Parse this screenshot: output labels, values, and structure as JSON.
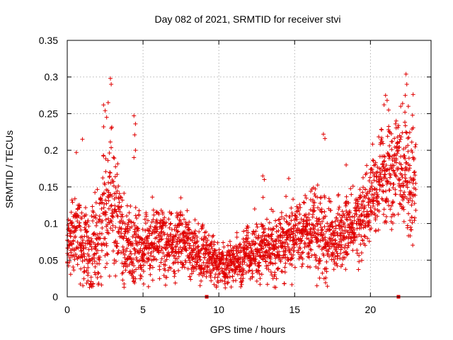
{
  "chart_data": {
    "type": "scatter",
    "title": "Day 082 of 2021, SRMTID for receiver stvi",
    "xlabel": "GPS time / hours",
    "ylabel": "SRMTID / TECUs",
    "xlim": [
      0,
      24
    ],
    "ylim": [
      0,
      0.35
    ],
    "x_ticks": [
      0,
      5,
      10,
      15,
      20
    ],
    "x_tick_labels": [
      "0",
      "5",
      "10",
      "15",
      "20"
    ],
    "y_ticks": [
      0,
      0.05,
      0.1,
      0.15,
      0.2,
      0.25,
      0.3,
      0.35
    ],
    "y_tick_labels": [
      "0",
      "0.05",
      "0.1",
      "0.15",
      "0.2",
      "0.25",
      "0.3",
      "0.35"
    ],
    "grid": true,
    "marker": "plus",
    "color": "#e00000",
    "trend": {
      "x": [
        0,
        0.5,
        1,
        1.5,
        2,
        2.5,
        3,
        3.5,
        4,
        4.5,
        5,
        5.5,
        6,
        6.5,
        7,
        7.5,
        8,
        8.5,
        9,
        9.5,
        10,
        10.5,
        11,
        11.5,
        12,
        12.5,
        13,
        13.5,
        14,
        14.5,
        15,
        15.5,
        16,
        16.5,
        17,
        17.5,
        18,
        18.5,
        19,
        19.5,
        20,
        20.5,
        21,
        21.5,
        22,
        22.5,
        23
      ],
      "y": [
        0.06,
        0.09,
        0.07,
        0.06,
        0.08,
        0.11,
        0.12,
        0.09,
        0.06,
        0.07,
        0.06,
        0.07,
        0.08,
        0.07,
        0.07,
        0.08,
        0.07,
        0.06,
        0.06,
        0.055,
        0.045,
        0.045,
        0.05,
        0.05,
        0.055,
        0.06,
        0.065,
        0.07,
        0.075,
        0.08,
        0.085,
        0.085,
        0.09,
        0.085,
        0.08,
        0.08,
        0.085,
        0.09,
        0.1,
        0.11,
        0.13,
        0.15,
        0.17,
        0.17,
        0.18,
        0.16,
        0.14
      ],
      "spread": [
        0.02,
        0.03,
        0.03,
        0.03,
        0.04,
        0.05,
        0.05,
        0.04,
        0.03,
        0.03,
        0.025,
        0.025,
        0.025,
        0.025,
        0.025,
        0.025,
        0.02,
        0.02,
        0.02,
        0.02,
        0.015,
        0.015,
        0.015,
        0.02,
        0.02,
        0.02,
        0.025,
        0.025,
        0.025,
        0.025,
        0.025,
        0.025,
        0.03,
        0.03,
        0.03,
        0.025,
        0.025,
        0.025,
        0.025,
        0.03,
        0.03,
        0.035,
        0.04,
        0.04,
        0.045,
        0.04,
        0.035
      ]
    },
    "outliers": [
      {
        "x": 2.85,
        "y": 0.298
      },
      {
        "x": 2.9,
        "y": 0.29
      },
      {
        "x": 2.7,
        "y": 0.265
      },
      {
        "x": 2.5,
        "y": 0.254
      },
      {
        "x": 2.6,
        "y": 0.245
      },
      {
        "x": 2.4,
        "y": 0.232
      },
      {
        "x": 4.4,
        "y": 0.247
      },
      {
        "x": 4.5,
        "y": 0.236
      },
      {
        "x": 4.45,
        "y": 0.221
      },
      {
        "x": 4.4,
        "y": 0.19
      },
      {
        "x": 4.5,
        "y": 0.2
      },
      {
        "x": 1.0,
        "y": 0.215
      },
      {
        "x": 0.6,
        "y": 0.197
      },
      {
        "x": 12.9,
        "y": 0.165
      },
      {
        "x": 13.0,
        "y": 0.16
      },
      {
        "x": 16.9,
        "y": 0.222
      },
      {
        "x": 17.0,
        "y": 0.216
      },
      {
        "x": 18.4,
        "y": 0.18
      },
      {
        "x": 21.0,
        "y": 0.275
      },
      {
        "x": 21.1,
        "y": 0.268
      },
      {
        "x": 20.9,
        "y": 0.262
      },
      {
        "x": 21.2,
        "y": 0.255
      },
      {
        "x": 22.35,
        "y": 0.304
      },
      {
        "x": 22.4,
        "y": 0.29
      },
      {
        "x": 22.3,
        "y": 0.275
      },
      {
        "x": 22.0,
        "y": 0.26
      },
      {
        "x": 22.5,
        "y": 0.26
      },
      {
        "x": 21.7,
        "y": 0.24
      },
      {
        "x": 22.7,
        "y": 0.2
      },
      {
        "x": 22.8,
        "y": 0.19
      }
    ],
    "markers_on_axis": [
      {
        "x": 9.2,
        "y": 0
      },
      {
        "x": 21.85,
        "y": 0
      }
    ]
  }
}
